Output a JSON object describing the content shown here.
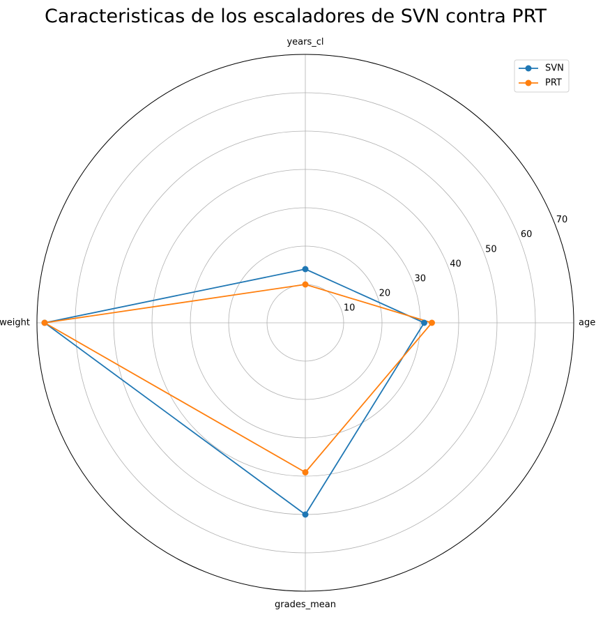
{
  "chart_data": {
    "type": "radar",
    "title": "Caracteristicas de los escaladores de SVN contra PRT",
    "categories": [
      "age",
      "years_cl",
      "weight",
      "grades_mean"
    ],
    "rlim": [
      0,
      70
    ],
    "rticks": [
      10,
      20,
      30,
      40,
      50,
      60,
      70
    ],
    "grid": true,
    "legend": "top-right",
    "series": [
      {
        "name": "SVN",
        "color": "#1f77b4",
        "values": [
          31,
          14,
          68,
          50
        ]
      },
      {
        "name": "PRT",
        "color": "#ff7f0e",
        "values": [
          33,
          10,
          68,
          39
        ]
      }
    ]
  }
}
